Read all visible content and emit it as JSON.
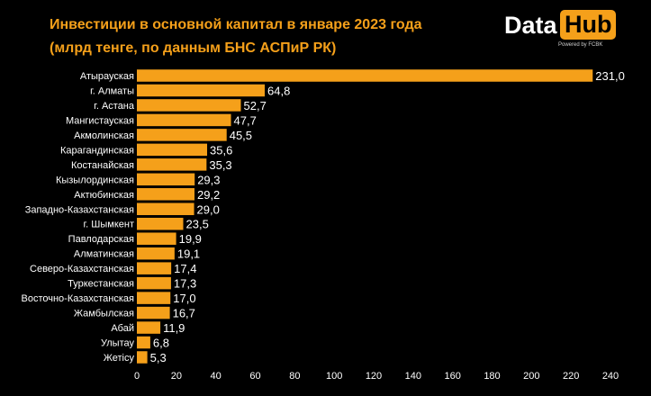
{
  "header": {
    "title": "Инвестиции в основной капитал в январе 2023 года",
    "subtitle": "(млрд тенге, по данным БНС АСПиР РК)"
  },
  "logo": {
    "data_text": "Data",
    "hub_text": "Hub",
    "powered_text": "Powered by FCBK"
  },
  "colors": {
    "background": "#000000",
    "bar": "#f5a01a",
    "text": "#ffffff",
    "accent": "#f5a01a"
  },
  "chart_data": {
    "type": "bar",
    "orientation": "horizontal",
    "title": "Инвестиции в основной капитал в январе 2023 года",
    "subtitle": "(млрд тенге, по данным БНС АСПиР РК)",
    "categories": [
      "Атырауская",
      "г. Алматы",
      "г. Астана",
      "Мангистауская",
      "Акмолинская",
      "Карагандинская",
      "Костанайская",
      "Кызылординская",
      "Актюбинская",
      "Западно-Казахстанская",
      "г. Шымкент",
      "Павлодарская",
      "Алматинская",
      "Северо-Казахстанская",
      "Туркестанская",
      "Восточно-Казахстанская",
      "Жамбылская",
      "Абай",
      "Улытау",
      "Жетісу"
    ],
    "values": [
      231.0,
      64.8,
      52.7,
      47.7,
      45.5,
      35.6,
      35.3,
      29.3,
      29.2,
      29.0,
      23.5,
      19.9,
      19.1,
      17.4,
      17.3,
      17.0,
      16.7,
      11.9,
      6.8,
      5.3
    ],
    "value_labels": [
      "231,0",
      "64,8",
      "52,7",
      "47,7",
      "45,5",
      "35,6",
      "35,3",
      "29,3",
      "29,2",
      "29,0",
      "23,5",
      "19,9",
      "19,1",
      "17,4",
      "17,3",
      "17,0",
      "16,7",
      "11,9",
      "6,8",
      "5,3"
    ],
    "xticks": [
      "0",
      "20",
      "40",
      "60",
      "80",
      "100",
      "120",
      "140",
      "160",
      "180",
      "200",
      "220",
      "240"
    ],
    "xlim": [
      0,
      240
    ],
    "xlabel": "",
    "ylabel": "",
    "grid": false,
    "legend": "none"
  }
}
